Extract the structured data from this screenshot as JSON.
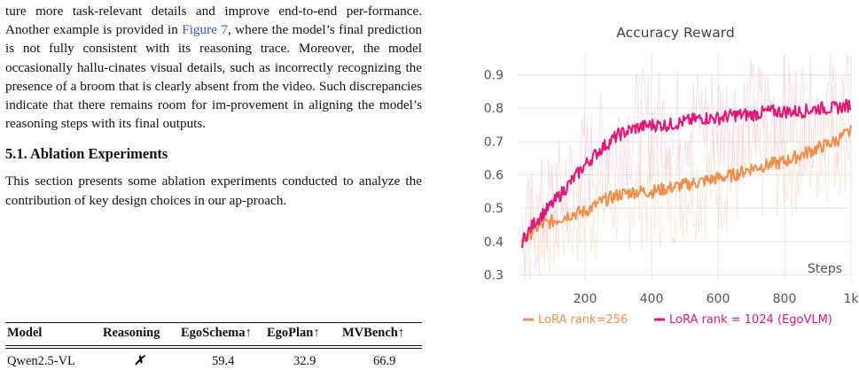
{
  "text": {
    "para1_a": "ture more task-relevant details and improve end-to-end per-formance. Another example is provided in ",
    "para1_ref": "Figure 7",
    "para1_b": ", where the model’s final prediction is not fully consistent with its reasoning trace. Moreover, the model occasionally hallu-cinates visual details, such as incorrectly recognizing the presence of a broom that is clearly absent from the video. Such discrepancies indicate that there remains room for im-provement in aligning the model’s reasoning steps with its final outputs.",
    "section_heading": "5.1. Ablation Experiments",
    "para2": "This section presents some ablation experiments conducted to analyze the contribution of key design choices in our ap-proach."
  },
  "table": {
    "headers": [
      "Model",
      "Reasoning",
      "EgoSchema↑",
      "EgoPlan↑",
      "MVBench↑"
    ],
    "rows": [
      [
        "Qwen2.5-VL",
        "✗",
        "59.4",
        "32.9",
        "66.9"
      ]
    ]
  },
  "chart_data": {
    "type": "line",
    "title": "Accuracy Reward",
    "xlabel": "Steps",
    "ylabel": "",
    "xlim": [
      0,
      1000
    ],
    "ylim": [
      0.28,
      0.96
    ],
    "xticks": [
      200,
      400,
      600,
      800,
      1000
    ],
    "xtick_labels": [
      "200",
      "400",
      "600",
      "800",
      "1k"
    ],
    "yticks": [
      0.3,
      0.4,
      0.5,
      0.6,
      0.7,
      0.8,
      0.9
    ],
    "ytick_labels": [
      "0.3",
      "0.4",
      "0.5",
      "0.6",
      "0.7",
      "0.8",
      "0.9"
    ],
    "grid": true,
    "legend_position": "bottom",
    "series": [
      {
        "name": "LoRA rank=256",
        "color": "#f28e4c",
        "x": [
          10,
          50,
          100,
          150,
          200,
          250,
          300,
          350,
          400,
          450,
          500,
          550,
          600,
          650,
          700,
          750,
          800,
          850,
          900,
          950,
          1000
        ],
        "values": [
          0.4,
          0.44,
          0.46,
          0.48,
          0.49,
          0.52,
          0.54,
          0.55,
          0.55,
          0.56,
          0.57,
          0.58,
          0.59,
          0.6,
          0.62,
          0.63,
          0.64,
          0.66,
          0.68,
          0.7,
          0.73
        ]
      },
      {
        "name": "LoRA rank = 1024 (EgoVLM)",
        "color": "#e0187a",
        "x": [
          10,
          50,
          100,
          150,
          200,
          250,
          300,
          350,
          400,
          450,
          500,
          550,
          600,
          650,
          700,
          750,
          800,
          850,
          900,
          950,
          1000
        ],
        "values": [
          0.4,
          0.46,
          0.51,
          0.57,
          0.63,
          0.68,
          0.72,
          0.74,
          0.75,
          0.75,
          0.76,
          0.77,
          0.77,
          0.78,
          0.78,
          0.79,
          0.79,
          0.79,
          0.8,
          0.8,
          0.81
        ]
      }
    ]
  }
}
